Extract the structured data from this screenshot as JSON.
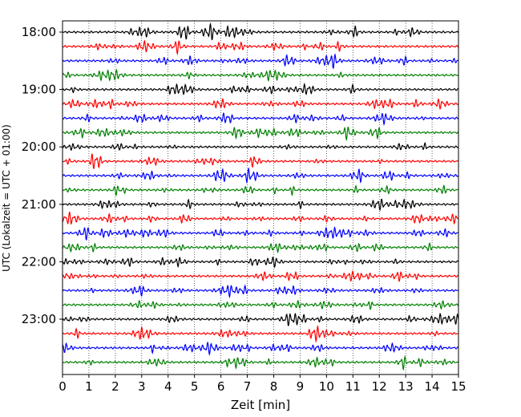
{
  "chart_data": {
    "type": "line",
    "title": "",
    "xlabel": "Zeit  [min]",
    "ylabel": "UTC (Lokalzeit = UTC + 01:00)",
    "x_ticks": [
      "0",
      "1",
      "2",
      "3",
      "4",
      "5",
      "6",
      "7",
      "8",
      "9",
      "10",
      "11",
      "12",
      "13",
      "14",
      "15"
    ],
    "xlim": [
      0,
      15
    ],
    "y_ticks": [
      "18:00",
      "19:00",
      "20:00",
      "21:00",
      "22:00",
      "23:00"
    ],
    "rows_per_hour": 4,
    "row_count": 24,
    "start_time": "18:00",
    "minutes_per_row": 15,
    "grid": "vertical dotted at each minute",
    "trace_colors": [
      "#000000",
      "#ff0000",
      "#0000ff",
      "#008000"
    ]
  }
}
